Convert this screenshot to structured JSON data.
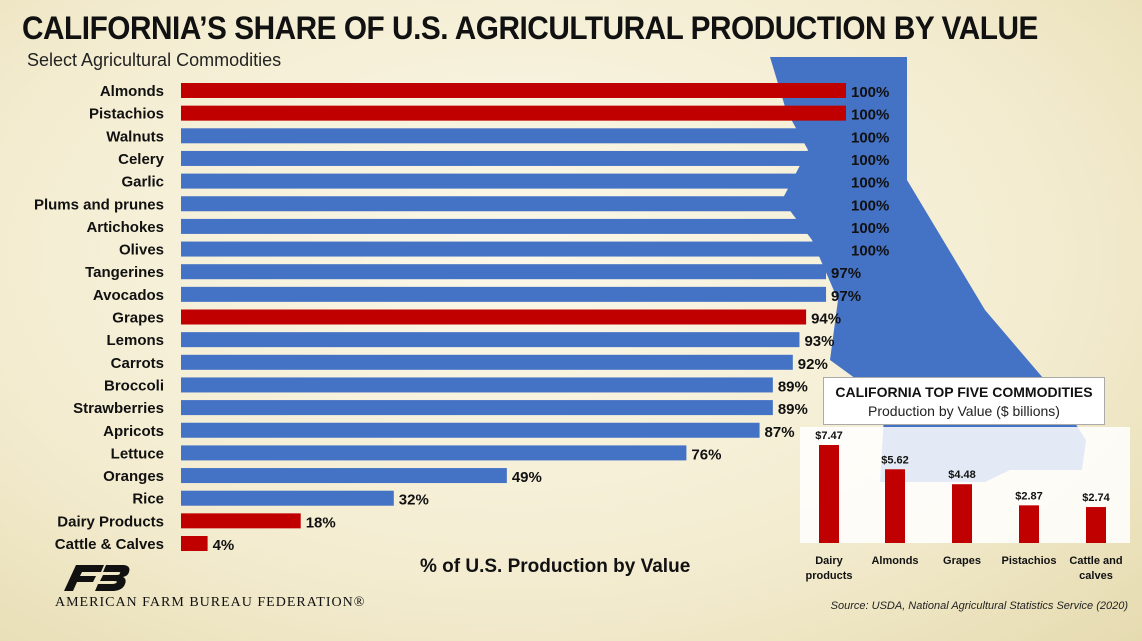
{
  "title": "CALIFORNIA’S SHARE OF U.S. AGRICULTURAL PRODUCTION BY VALUE",
  "subtitle": "Select Agricultural Commodities",
  "colors": {
    "red": "#c00000",
    "blue": "#4472c4",
    "map": "#4472c4"
  },
  "chart_data": [
    {
      "type": "bar",
      "orientation": "horizontal",
      "xlabel": "% of U.S. Production by Value",
      "xlim": [
        0,
        100
      ],
      "grid": false,
      "categories": [
        "Almonds",
        "Pistachios",
        "Walnuts",
        "Celery",
        "Garlic",
        "Plums and prunes",
        "Artichokes",
        "Olives",
        "Tangerines",
        "Avocados",
        "Grapes",
        "Lemons",
        "Carrots",
        "Broccoli",
        "Strawberries",
        "Apricots",
        "Lettuce",
        "Oranges",
        "Rice",
        "Dairy Products",
        "Cattle & Calves"
      ],
      "values": [
        100,
        100,
        100,
        100,
        100,
        100,
        100,
        100,
        97,
        97,
        94,
        93,
        92,
        89,
        89,
        87,
        76,
        49,
        32,
        18,
        4
      ],
      "value_labels": [
        "100%",
        "100%",
        "100%",
        "100%",
        "100%",
        "100%",
        "100%",
        "100%",
        "97%",
        "97%",
        "94%",
        "93%",
        "92%",
        "89%",
        "89%",
        "87%",
        "76%",
        "49%",
        "32%",
        "18%",
        "4%"
      ],
      "highlighted": [
        true,
        true,
        false,
        false,
        false,
        false,
        false,
        false,
        false,
        false,
        true,
        false,
        false,
        false,
        false,
        false,
        false,
        false,
        false,
        true,
        true
      ]
    },
    {
      "type": "bar",
      "title": "CALIFORNIA TOP FIVE COMMODITIES",
      "subtitle": "Production by Value ($ billions)",
      "categories": [
        [
          "Dairy",
          "products"
        ],
        [
          "Almonds"
        ],
        [
          "Grapes"
        ],
        [
          "Pistachios"
        ],
        [
          "Cattle and",
          "calves"
        ]
      ],
      "values": [
        7.47,
        5.62,
        4.48,
        2.87,
        2.74
      ],
      "value_labels": [
        "$7.47",
        "$5.62",
        "$4.48",
        "$2.87",
        "$2.74"
      ]
    }
  ],
  "logo": {
    "icon": "afbf-logo-icon",
    "org_name": "AMERICAN FARM BUREAU FEDERATION®"
  },
  "source": "Source: USDA, National Agricultural Statistics Service (2020)"
}
